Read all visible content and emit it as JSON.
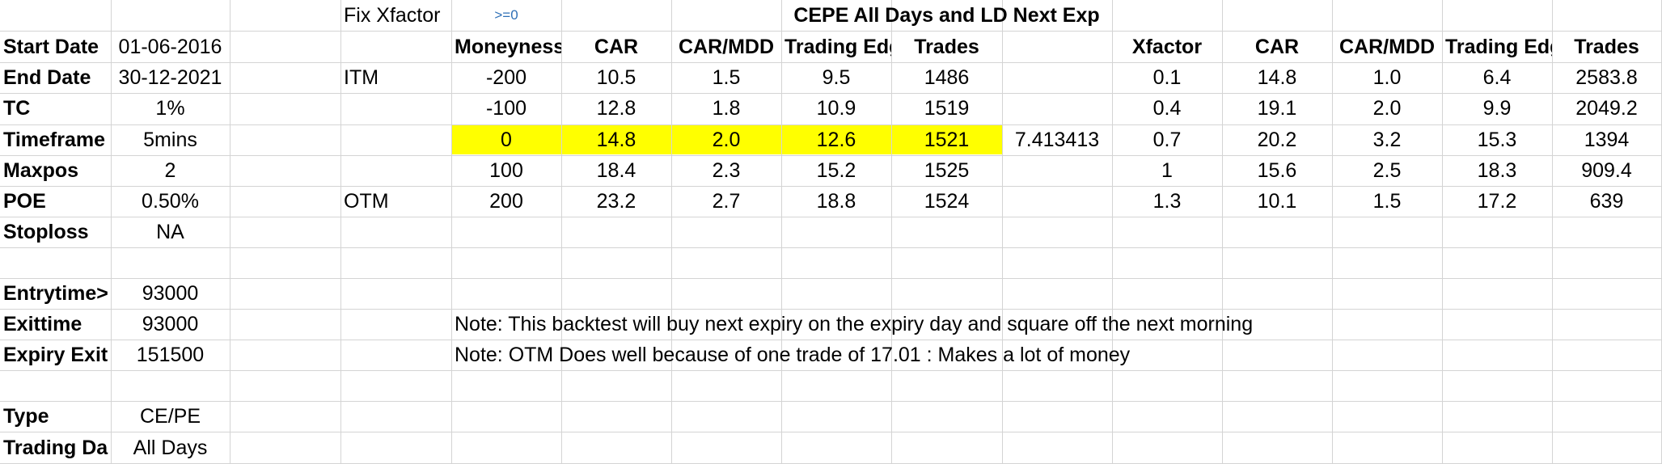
{
  "labels": {
    "start_date": "Start Date",
    "end_date": "End Date",
    "tc": "TC",
    "timeframe": "Timeframe",
    "maxpos": "Maxpos",
    "poe": "POE",
    "stoploss": "Stoploss",
    "entrytime": "Entrytime>",
    "exittime": "Exittime",
    "expiry_exit": "Expiry Exit",
    "type": "Type",
    "trading_days": "Trading Da"
  },
  "params": {
    "start_date": "01-06-2016",
    "end_date": "30-12-2021",
    "tc": "1%",
    "timeframe": "5mins",
    "maxpos": "2",
    "poe": "0.50%",
    "stoploss": "NA",
    "entrytime": "93000",
    "exittime": "93000",
    "expiry_exit": "151500",
    "type": "CE/PE",
    "trading_days": "All Days"
  },
  "header": {
    "fix_xfactor": "Fix Xfactor",
    "fix_xfactor_value": ">=0",
    "title": "CEPE All Days and LD Next Exp"
  },
  "left_table": {
    "headers": [
      "Moneyness",
      "CAR",
      "CAR/MDD",
      "Trading Edge",
      "Trades"
    ],
    "row_tags": [
      "ITM",
      "",
      "",
      "",
      "OTM"
    ],
    "rows": [
      [
        "-200",
        "10.5",
        "1.5",
        "9.5",
        "1486"
      ],
      [
        "-100",
        "12.8",
        "1.8",
        "10.9",
        "1519"
      ],
      [
        "0",
        "14.8",
        "2.0",
        "12.6",
        "1521"
      ],
      [
        "100",
        "18.4",
        "2.3",
        "15.2",
        "1525"
      ],
      [
        "200",
        "23.2",
        "2.7",
        "18.8",
        "1524"
      ]
    ],
    "side_value": "7.413413"
  },
  "right_table": {
    "headers": [
      "Xfactor",
      "CAR",
      "CAR/MDD",
      "Trading Edge",
      "Trades"
    ],
    "rows": [
      [
        "0.1",
        "14.8",
        "1.0",
        "6.4",
        "2583.8"
      ],
      [
        "0.4",
        "19.1",
        "2.0",
        "9.9",
        "2049.2"
      ],
      [
        "0.7",
        "20.2",
        "3.2",
        "15.3",
        "1394"
      ],
      [
        "1",
        "15.6",
        "2.5",
        "18.3",
        "909.4"
      ],
      [
        "1.3",
        "10.1",
        "1.5",
        "17.2",
        "639"
      ]
    ]
  },
  "notes": [
    "Note: This backtest will buy next expiry on the expiry day and square off the next morning",
    "Note: OTM Does well because of one trade of 17.01 : Makes a lot of money"
  ],
  "colors": {
    "highlight": "#ffff00",
    "gridline": "#d4d4d4",
    "note_blue": "#2e6fb6"
  }
}
